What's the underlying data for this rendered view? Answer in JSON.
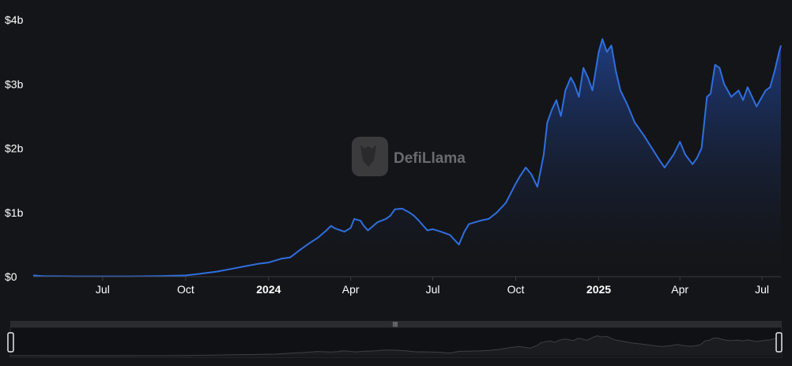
{
  "watermark": {
    "brand": "DefiLlama"
  },
  "colors": {
    "background": "#141518",
    "line": "#2f6fe0",
    "area_top": "#1f3f86",
    "area_bottom": "#141518",
    "axis": "#3a3c42",
    "slider_bg": "#2a2c30",
    "slider_track": "#101114"
  },
  "chart_data": {
    "type": "area",
    "title": "",
    "xlabel": "",
    "ylabel": "",
    "ylim": [
      0,
      4000000000
    ],
    "xlim": [
      "2023-04-15",
      "2025-07-22"
    ],
    "y_ticks": [
      {
        "value": 0,
        "label": "$0"
      },
      {
        "value": 1000000000,
        "label": "$1b"
      },
      {
        "value": 2000000000,
        "label": "$2b"
      },
      {
        "value": 3000000000,
        "label": "$3b"
      },
      {
        "value": 4000000000,
        "label": "$4b"
      }
    ],
    "x_ticks": [
      {
        "date": "2023-07-01",
        "label": "Jul",
        "bold": false
      },
      {
        "date": "2023-10-01",
        "label": "Oct",
        "bold": false
      },
      {
        "date": "2024-01-01",
        "label": "2024",
        "bold": true
      },
      {
        "date": "2024-04-01",
        "label": "Apr",
        "bold": false
      },
      {
        "date": "2024-07-01",
        "label": "Jul",
        "bold": false
      },
      {
        "date": "2024-10-01",
        "label": "Oct",
        "bold": false
      },
      {
        "date": "2025-01-01",
        "label": "2025",
        "bold": true
      },
      {
        "date": "2025-04-01",
        "label": "Apr",
        "bold": false
      },
      {
        "date": "2025-07-01",
        "label": "Jul",
        "bold": false
      }
    ],
    "grid": false,
    "legend": "none",
    "series": [
      {
        "x": [
          "2023-04-15",
          "2023-04-25",
          "2023-05-10",
          "2023-06-01",
          "2023-07-01",
          "2023-08-01",
          "2023-09-01",
          "2023-10-01",
          "2023-10-20",
          "2023-11-05",
          "2023-11-20",
          "2023-12-05",
          "2023-12-20",
          "2024-01-01",
          "2024-01-15",
          "2024-01-25",
          "2024-02-05",
          "2024-02-15",
          "2024-02-25",
          "2024-03-05",
          "2024-03-10",
          "2024-03-15",
          "2024-03-25",
          "2024-04-01",
          "2024-04-05",
          "2024-04-12",
          "2024-04-15",
          "2024-04-20",
          "2024-05-01",
          "2024-05-10",
          "2024-05-15",
          "2024-05-20",
          "2024-05-28",
          "2024-06-05",
          "2024-06-10",
          "2024-06-15",
          "2024-06-20",
          "2024-06-25",
          "2024-07-01",
          "2024-07-10",
          "2024-07-20",
          "2024-07-30",
          "2024-08-05",
          "2024-08-10",
          "2024-08-20",
          "2024-08-25",
          "2024-09-01",
          "2024-09-10",
          "2024-09-20",
          "2024-10-01",
          "2024-10-05",
          "2024-10-12",
          "2024-10-18",
          "2024-10-25",
          "2024-11-01",
          "2024-11-05",
          "2024-11-10",
          "2024-11-15",
          "2024-11-20",
          "2024-11-25",
          "2024-12-01",
          "2024-12-05",
          "2024-12-10",
          "2024-12-15",
          "2024-12-20",
          "2024-12-25",
          "2025-01-01",
          "2025-01-05",
          "2025-01-10",
          "2025-01-15",
          "2025-01-20",
          "2025-01-25",
          "2025-02-01",
          "2025-02-10",
          "2025-02-20",
          "2025-03-01",
          "2025-03-10",
          "2025-03-15",
          "2025-03-25",
          "2025-04-01",
          "2025-04-07",
          "2025-04-15",
          "2025-04-20",
          "2025-04-25",
          "2025-05-01",
          "2025-05-05",
          "2025-05-10",
          "2025-05-15",
          "2025-05-20",
          "2025-05-28",
          "2025-06-05",
          "2025-06-10",
          "2025-06-15",
          "2025-06-20",
          "2025-06-25",
          "2025-07-01",
          "2025-07-05",
          "2025-07-10",
          "2025-07-15",
          "2025-07-20",
          "2025-07-22"
        ],
        "values": [
          20000000,
          10000000,
          8000000,
          5000000,
          5000000,
          5000000,
          10000000,
          20000000,
          50000000,
          80000000,
          120000000,
          160000000,
          200000000,
          220000000,
          280000000,
          300000000,
          420000000,
          520000000,
          610000000,
          720000000,
          790000000,
          750000000,
          700000000,
          760000000,
          900000000,
          870000000,
          800000000,
          720000000,
          850000000,
          900000000,
          950000000,
          1050000000,
          1060000000,
          1000000000,
          950000000,
          880000000,
          800000000,
          720000000,
          740000000,
          700000000,
          650000000,
          500000000,
          700000000,
          820000000,
          860000000,
          880000000,
          900000000,
          1000000000,
          1150000000,
          1450000000,
          1550000000,
          1700000000,
          1600000000,
          1400000000,
          1900000000,
          2400000000,
          2600000000,
          2750000000,
          2500000000,
          2900000000,
          3100000000,
          3000000000,
          2800000000,
          3250000000,
          3100000000,
          2900000000,
          3500000000,
          3700000000,
          3500000000,
          3600000000,
          3200000000,
          2900000000,
          2700000000,
          2400000000,
          2200000000,
          2000000000,
          1800000000,
          1700000000,
          1900000000,
          2100000000,
          1900000000,
          1750000000,
          1850000000,
          2000000000,
          2800000000,
          2850000000,
          3300000000,
          3250000000,
          3000000000,
          2800000000,
          2900000000,
          2750000000,
          2950000000,
          2800000000,
          2650000000,
          2800000000,
          2900000000,
          2950000000,
          3200000000,
          3500000000,
          3600000000
        ]
      }
    ]
  }
}
